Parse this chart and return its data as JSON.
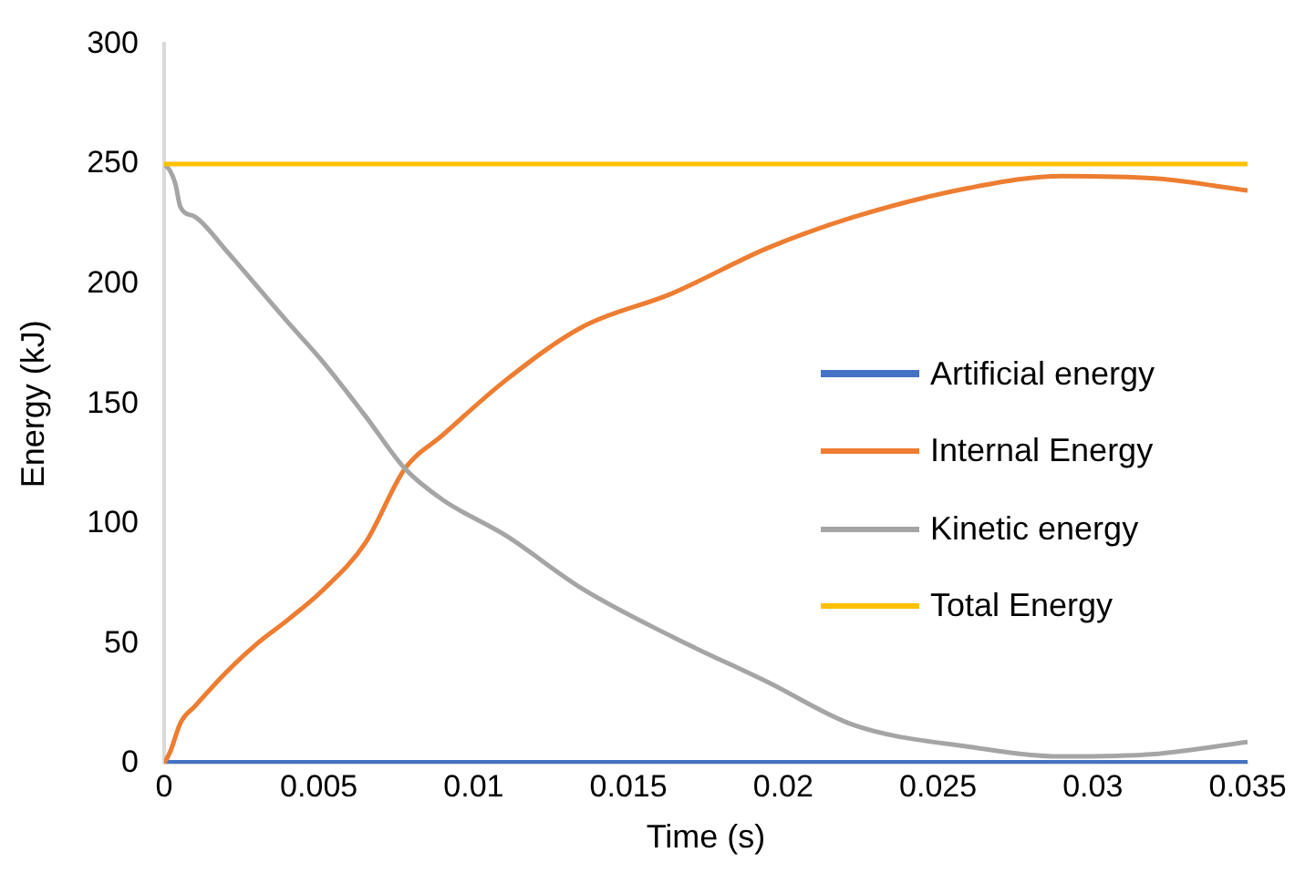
{
  "chart_data": {
    "type": "line",
    "xlabel": "Time (s)",
    "ylabel": "Energy (kJ)",
    "xlim": [
      0,
      0.035
    ],
    "xticks": [
      0,
      0.005,
      0.01,
      0.015,
      0.02,
      0.025,
      0.03,
      0.035
    ],
    "ylim": [
      0,
      300
    ],
    "yticks": [
      0,
      50,
      100,
      150,
      200,
      250,
      300
    ],
    "grid": false,
    "legend": "right",
    "marker": "none",
    "line_style": "solid",
    "series": [
      {
        "name": "Artificial energy",
        "color": "#4472c4",
        "x": [
          0,
          0.035
        ],
        "values": [
          0,
          0
        ]
      },
      {
        "name": "Internal Energy",
        "color": "#ed7d31",
        "x": [
          0,
          0.0002,
          0.00053,
          0.001,
          0.002,
          0.003,
          0.004,
          0.0051,
          0.0065,
          0.00778,
          0.009,
          0.01105,
          0.0135,
          0.0164,
          0.0195,
          0.0223,
          0.026,
          0.029,
          0.032,
          0.035
        ],
        "values": [
          0,
          5,
          17,
          24,
          38,
          50,
          60,
          72,
          92,
          123,
          137,
          160,
          182,
          196,
          215,
          228,
          240,
          245,
          244,
          239
        ]
      },
      {
        "name": "Kinetic energy",
        "color": "#a5a5a5",
        "x": [
          0,
          0.0002,
          0.00036,
          0.00053,
          0.001,
          0.002,
          0.003,
          0.004,
          0.0051,
          0.0065,
          0.00778,
          0.009,
          0.01105,
          0.0135,
          0.0164,
          0.0195,
          0.0223,
          0.026,
          0.029,
          0.032,
          0.035
        ],
        "values": [
          250,
          247,
          242,
          232,
          228,
          214,
          199,
          184,
          168,
          145,
          123,
          110,
          95,
          73,
          53,
          34,
          16,
          7,
          3,
          4,
          9
        ]
      },
      {
        "name": "Total Energy",
        "color": "#ffc000",
        "x": [
          0,
          0.035
        ],
        "values": [
          250,
          250
        ]
      }
    ]
  }
}
